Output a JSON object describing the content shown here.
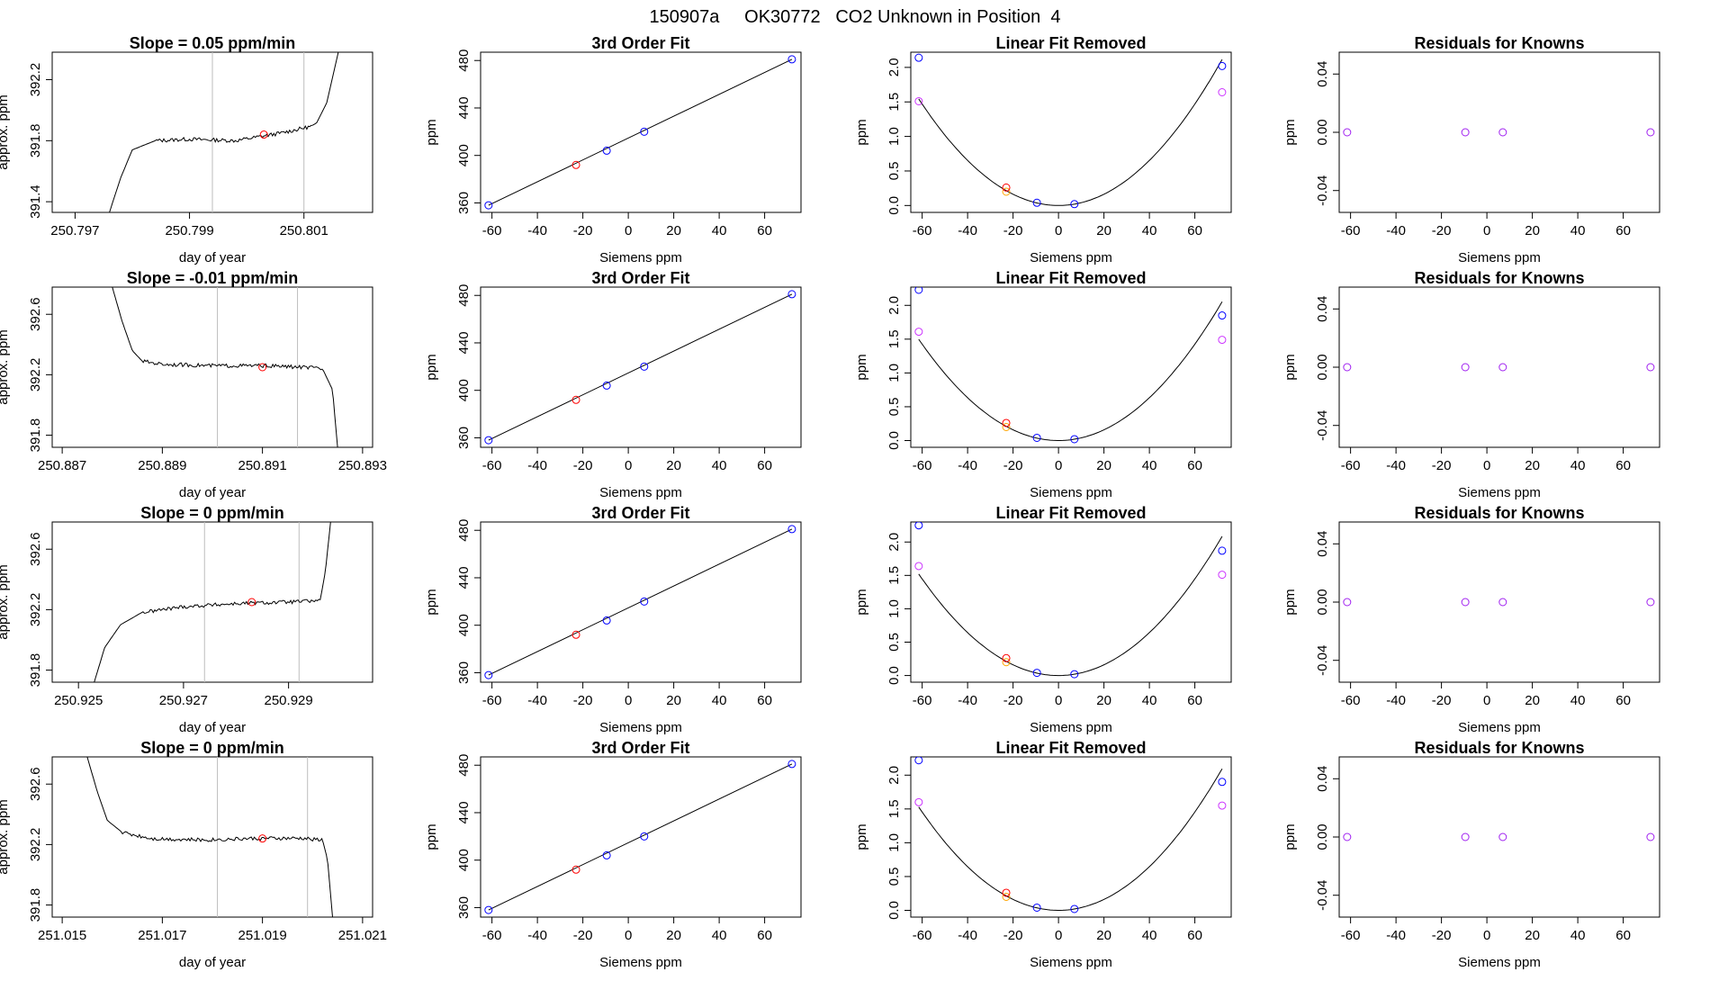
{
  "figure": {
    "title": "150907a     OK30772   CO2 Unknown in Position  4",
    "colors": {
      "trace": "#000000",
      "gridline": "#bebebe",
      "blue": "#0000ff",
      "red": "#ff0000",
      "orange": "#ffa500",
      "violet": "#cc33ff",
      "purple": "#a020f0"
    }
  },
  "chart_data": [
    {
      "type": "line",
      "title": "Slope =  0.05  ppm/min",
      "xlabel": "day of year",
      "ylabel": "approx. ppm",
      "xlim": [
        250.7966,
        250.8022
      ],
      "ylim": [
        391.33,
        392.38
      ],
      "xticks": [
        "250.797",
        "250.799",
        "250.801"
      ],
      "yticks": [
        "391.4",
        "391.8",
        "392.2"
      ],
      "vlines": [
        250.7994,
        250.801
      ],
      "marker": {
        "x": 250.8003,
        "y": 391.84
      },
      "trace": {
        "kind": "rise",
        "x": [
          250.7976,
          250.7978,
          250.798,
          250.7984,
          250.799,
          250.7998,
          250.8006,
          250.8012,
          250.8014,
          250.8016
        ],
        "y": [
          391.33,
          391.56,
          391.74,
          391.8,
          391.81,
          391.8,
          391.85,
          391.9,
          392.05,
          392.38
        ]
      }
    },
    {
      "type": "scatter",
      "title": "3rd Order Fit",
      "xlabel": "Siemens ppm",
      "ylabel": "ppm",
      "xlim": [
        -65,
        76
      ],
      "ylim": [
        352,
        487
      ],
      "xticks": [
        "-60",
        "-40",
        "-20",
        "0",
        "20",
        "40",
        "60"
      ],
      "yticks": [
        "360",
        "400",
        "440",
        "480"
      ],
      "blue_points": [
        {
          "x": -61.5,
          "y": 358
        },
        {
          "x": -9.5,
          "y": 404
        },
        {
          "x": 7,
          "y": 420
        },
        {
          "x": 72,
          "y": 481
        }
      ],
      "red_point": {
        "x": -23,
        "y": 392
      },
      "fit_line": [
        [
          -61.5,
          358
        ],
        [
          72,
          481
        ]
      ]
    },
    {
      "type": "scatter",
      "title": "Linear Fit Removed",
      "xlabel": "Siemens ppm",
      "ylabel": "ppm",
      "xlim": [
        -65,
        76
      ],
      "ylim": [
        -0.1,
        2.22
      ],
      "xticks": [
        "-60",
        "-40",
        "-20",
        "0",
        "20",
        "40",
        "60"
      ],
      "yticks": [
        "0.0",
        "0.5",
        "1.0",
        "1.5",
        "2.0"
      ],
      "curve_coef": 0.000408,
      "blue_points": [
        {
          "x": -61.5,
          "y": 2.14
        },
        {
          "x": -9.5,
          "y": 0.04
        },
        {
          "x": 7,
          "y": 0.02
        },
        {
          "x": 72,
          "y": 2.02
        }
      ],
      "red_point": {
        "x": -23,
        "y": 0.26
      },
      "orange_point": {
        "x": -23,
        "y": 0.2
      },
      "violet_points": [
        {
          "x": -61.5,
          "y": 1.51
        },
        {
          "x": 72,
          "y": 1.64
        }
      ]
    },
    {
      "type": "scatter",
      "title": "Residuals for Knowns",
      "xlabel": "Siemens ppm",
      "ylabel": "ppm",
      "xlim": [
        -65,
        76
      ],
      "ylim": [
        -0.055,
        0.055
      ],
      "xticks": [
        "-60",
        "-40",
        "-20",
        "0",
        "20",
        "40",
        "60"
      ],
      "yticks": [
        "-0.04",
        "0.00",
        "0.04"
      ],
      "purple_points": [
        {
          "x": -61.5,
          "y": 0
        },
        {
          "x": -9.5,
          "y": 0
        },
        {
          "x": 7,
          "y": 0
        },
        {
          "x": 72,
          "y": 0
        }
      ]
    },
    {
      "type": "line",
      "title": "Slope =  -0.01  ppm/min",
      "xlabel": "day of year",
      "ylabel": "approx. ppm",
      "xlim": [
        250.8868,
        250.8932
      ],
      "ylim": [
        391.72,
        392.78
      ],
      "xticks": [
        "250.887",
        "250.889",
        "250.891",
        "250.893"
      ],
      "yticks": [
        "391.8",
        "392.2",
        "392.6"
      ],
      "vlines": [
        250.8901,
        250.8917
      ],
      "marker": {
        "x": 250.891,
        "y": 392.25
      },
      "trace": {
        "kind": "fall",
        "x": [
          250.888,
          250.8882,
          250.8884,
          250.8886,
          250.889,
          250.89,
          250.891,
          250.8918,
          250.8922,
          250.8924,
          250.8925
        ],
        "y": [
          392.78,
          392.55,
          392.36,
          392.29,
          392.27,
          392.26,
          392.26,
          392.25,
          392.24,
          392.1,
          391.72
        ]
      }
    },
    {
      "type": "scatter",
      "title": "3rd Order Fit",
      "xlabel": "Siemens ppm",
      "ylabel": "ppm",
      "xlim": [
        -65,
        76
      ],
      "ylim": [
        352,
        487
      ],
      "xticks": [
        "-60",
        "-40",
        "-20",
        "0",
        "20",
        "40",
        "60"
      ],
      "yticks": [
        "360",
        "400",
        "440",
        "480"
      ],
      "blue_points": [
        {
          "x": -61.5,
          "y": 358
        },
        {
          "x": -9.5,
          "y": 404
        },
        {
          "x": 7,
          "y": 420
        },
        {
          "x": 72,
          "y": 481
        }
      ],
      "red_point": {
        "x": -23,
        "y": 392
      },
      "fit_line": [
        [
          -61.5,
          358
        ],
        [
          72,
          481
        ]
      ]
    },
    {
      "type": "scatter",
      "title": "Linear Fit Removed",
      "xlabel": "Siemens ppm",
      "ylabel": "ppm",
      "xlim": [
        -65,
        76
      ],
      "ylim": [
        -0.1,
        2.27
      ],
      "xticks": [
        "-60",
        "-40",
        "-20",
        "0",
        "20",
        "40",
        "60"
      ],
      "yticks": [
        "0.0",
        "0.5",
        "1.0",
        "1.5",
        "2.0"
      ],
      "curve_coef": 0.000396,
      "blue_points": [
        {
          "x": -61.5,
          "y": 2.23
        },
        {
          "x": -9.5,
          "y": 0.04
        },
        {
          "x": 7,
          "y": 0.02
        },
        {
          "x": 72,
          "y": 1.85
        }
      ],
      "red_point": {
        "x": -23,
        "y": 0.26
      },
      "orange_point": {
        "x": -23,
        "y": 0.2
      },
      "violet_points": [
        {
          "x": -61.5,
          "y": 1.61
        },
        {
          "x": 72,
          "y": 1.49
        }
      ]
    },
    {
      "type": "scatter",
      "title": "Residuals for Knowns",
      "xlabel": "Siemens ppm",
      "ylabel": "ppm",
      "xlim": [
        -65,
        76
      ],
      "ylim": [
        -0.055,
        0.055
      ],
      "xticks": [
        "-60",
        "-40",
        "-20",
        "0",
        "20",
        "40",
        "60"
      ],
      "yticks": [
        "-0.04",
        "0.00",
        "0.04"
      ],
      "purple_points": [
        {
          "x": -61.5,
          "y": 0
        },
        {
          "x": -9.5,
          "y": 0
        },
        {
          "x": 7,
          "y": 0
        },
        {
          "x": 72,
          "y": 0
        }
      ]
    },
    {
      "type": "line",
      "title": "Slope =  0  ppm/min",
      "xlabel": "day of year",
      "ylabel": "approx. ppm",
      "xlim": [
        250.9245,
        250.9306
      ],
      "ylim": [
        391.72,
        392.78
      ],
      "xticks": [
        "250.925",
        "250.927",
        "250.929"
      ],
      "yticks": [
        "391.8",
        "392.2",
        "392.6"
      ],
      "vlines": [
        250.9274,
        250.9292
      ],
      "marker": {
        "x": 250.9283,
        "y": 392.25
      },
      "trace": {
        "kind": "rise",
        "x": [
          250.9253,
          250.9255,
          250.9258,
          250.9262,
          250.927,
          250.928,
          250.929,
          250.9296,
          250.9297,
          250.9298
        ],
        "y": [
          391.72,
          391.95,
          392.1,
          392.18,
          392.22,
          392.24,
          392.25,
          392.26,
          392.45,
          392.78
        ]
      }
    },
    {
      "type": "scatter",
      "title": "3rd Order Fit",
      "xlabel": "Siemens ppm",
      "ylabel": "ppm",
      "xlim": [
        -65,
        76
      ],
      "ylim": [
        352,
        487
      ],
      "xticks": [
        "-60",
        "-40",
        "-20",
        "0",
        "20",
        "40",
        "60"
      ],
      "yticks": [
        "360",
        "400",
        "440",
        "480"
      ],
      "blue_points": [
        {
          "x": -61.5,
          "y": 358
        },
        {
          "x": -9.5,
          "y": 404
        },
        {
          "x": 7,
          "y": 420
        },
        {
          "x": 72,
          "y": 481
        }
      ],
      "red_point": {
        "x": -23,
        "y": 392
      },
      "fit_line": [
        [
          -61.5,
          358
        ],
        [
          72,
          481
        ]
      ]
    },
    {
      "type": "scatter",
      "title": "Linear Fit Removed",
      "xlabel": "Siemens ppm",
      "ylabel": "ppm",
      "xlim": [
        -65,
        76
      ],
      "ylim": [
        -0.1,
        2.3
      ],
      "xticks": [
        "-60",
        "-40",
        "-20",
        "0",
        "20",
        "40",
        "60"
      ],
      "yticks": [
        "0.0",
        "0.5",
        "1.0",
        "1.5",
        "2.0"
      ],
      "curve_coef": 0.000402,
      "blue_points": [
        {
          "x": -61.5,
          "y": 2.25
        },
        {
          "x": -9.5,
          "y": 0.04
        },
        {
          "x": 7,
          "y": 0.02
        },
        {
          "x": 72,
          "y": 1.87
        }
      ],
      "red_point": {
        "x": -23,
        "y": 0.26
      },
      "orange_point": {
        "x": -23,
        "y": 0.2
      },
      "violet_points": [
        {
          "x": -61.5,
          "y": 1.64
        },
        {
          "x": 72,
          "y": 1.51
        }
      ]
    },
    {
      "type": "scatter",
      "title": "Residuals for Knowns",
      "xlabel": "Siemens ppm",
      "ylabel": "ppm",
      "xlim": [
        -65,
        76
      ],
      "ylim": [
        -0.055,
        0.055
      ],
      "xticks": [
        "-60",
        "-40",
        "-20",
        "0",
        "20",
        "40",
        "60"
      ],
      "yticks": [
        "-0.04",
        "0.00",
        "0.04"
      ],
      "purple_points": [
        {
          "x": -61.5,
          "y": 0
        },
        {
          "x": -9.5,
          "y": 0
        },
        {
          "x": 7,
          "y": 0
        },
        {
          "x": 72,
          "y": 0
        }
      ]
    },
    {
      "type": "line",
      "title": "Slope =  0  ppm/min",
      "xlabel": "day of year",
      "ylabel": "approx. ppm",
      "xlim": [
        251.0148,
        251.0212
      ],
      "ylim": [
        391.72,
        392.78
      ],
      "xticks": [
        "251.015",
        "251.017",
        "251.019",
        "251.021"
      ],
      "yticks": [
        "391.8",
        "392.2",
        "392.6"
      ],
      "vlines": [
        251.0181,
        251.0199
      ],
      "marker": {
        "x": 251.019,
        "y": 392.24
      },
      "trace": {
        "kind": "fall",
        "x": [
          251.0155,
          251.0157,
          251.0159,
          251.0162,
          251.0168,
          251.0178,
          251.0188,
          251.0198,
          251.0202,
          251.0203,
          251.0204
        ],
        "y": [
          392.78,
          392.55,
          392.36,
          392.28,
          392.24,
          392.23,
          392.24,
          392.24,
          392.23,
          392.1,
          391.72
        ]
      }
    },
    {
      "type": "scatter",
      "title": "3rd Order Fit",
      "xlabel": "Siemens ppm",
      "ylabel": "ppm",
      "xlim": [
        -65,
        76
      ],
      "ylim": [
        352,
        487
      ],
      "xticks": [
        "-60",
        "-40",
        "-20",
        "0",
        "20",
        "40",
        "60"
      ],
      "yticks": [
        "360",
        "400",
        "440",
        "480"
      ],
      "blue_points": [
        {
          "x": -61.5,
          "y": 358
        },
        {
          "x": -9.5,
          "y": 404
        },
        {
          "x": 7,
          "y": 420
        },
        {
          "x": 72,
          "y": 481
        }
      ],
      "red_point": {
        "x": -23,
        "y": 392
      },
      "fit_line": [
        [
          -61.5,
          358
        ],
        [
          72,
          481
        ]
      ]
    },
    {
      "type": "scatter",
      "title": "Linear Fit Removed",
      "xlabel": "Siemens ppm",
      "ylabel": "ppm",
      "xlim": [
        -65,
        76
      ],
      "ylim": [
        -0.1,
        2.27
      ],
      "xticks": [
        "-60",
        "-40",
        "-20",
        "0",
        "20",
        "40",
        "60"
      ],
      "yticks": [
        "0.0",
        "0.5",
        "1.0",
        "1.5",
        "2.0"
      ],
      "curve_coef": 0.000404,
      "blue_points": [
        {
          "x": -61.5,
          "y": 2.22
        },
        {
          "x": -9.5,
          "y": 0.04
        },
        {
          "x": 7,
          "y": 0.02
        },
        {
          "x": 72,
          "y": 1.9
        }
      ],
      "red_point": {
        "x": -23,
        "y": 0.26
      },
      "orange_point": {
        "x": -23,
        "y": 0.2
      },
      "violet_points": [
        {
          "x": -61.5,
          "y": 1.6
        },
        {
          "x": 72,
          "y": 1.55
        }
      ]
    },
    {
      "type": "scatter",
      "title": "Residuals for Knowns",
      "xlabel": "Siemens ppm",
      "ylabel": "ppm",
      "xlim": [
        -65,
        76
      ],
      "ylim": [
        -0.055,
        0.055
      ],
      "xticks": [
        "-60",
        "-40",
        "-20",
        "0",
        "20",
        "40",
        "60"
      ],
      "yticks": [
        "-0.04",
        "0.00",
        "0.04"
      ],
      "purple_points": [
        {
          "x": -61.5,
          "y": 0
        },
        {
          "x": -9.5,
          "y": 0
        },
        {
          "x": 7,
          "y": 0
        },
        {
          "x": 72,
          "y": 0
        }
      ]
    }
  ]
}
